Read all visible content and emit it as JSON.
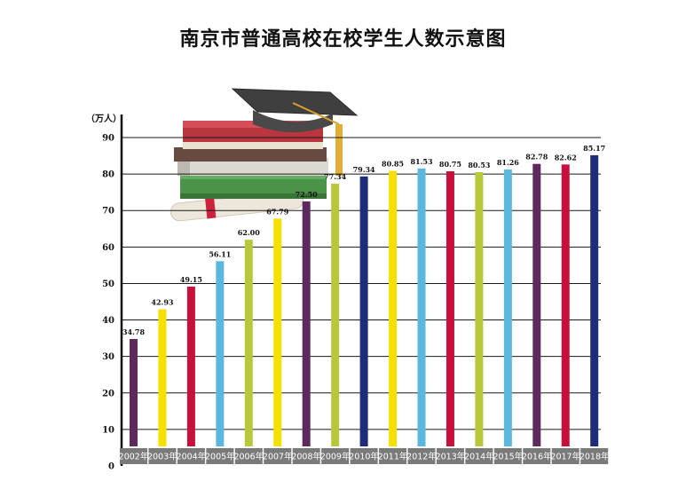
{
  "page": {
    "title": "南京市普通高校在校学生人数示意图"
  },
  "chart_data": {
    "type": "bar",
    "title": "南京市普通高校在校学生人数示意图",
    "ylabel": "（万人）",
    "xlabel": "",
    "ylim": [
      0,
      90
    ],
    "yticks": [
      0,
      10,
      20,
      30,
      40,
      50,
      60,
      70,
      80,
      90
    ],
    "grid": true,
    "categories": [
      "2002年",
      "2003年",
      "2004年",
      "2005年",
      "2006年",
      "2007年",
      "2008年",
      "2009年",
      "2010年",
      "2011年",
      "2012年",
      "2013年",
      "2014年",
      "2015年",
      "2016年",
      "2017年",
      "2018年"
    ],
    "values": [
      34.78,
      42.93,
      49.15,
      56.11,
      62.0,
      67.79,
      72.5,
      77.34,
      79.34,
      80.85,
      81.53,
      80.75,
      80.53,
      81.26,
      82.78,
      82.62,
      85.17
    ],
    "value_labels": [
      "34.78",
      "42.93",
      "49.15",
      "56.11",
      "62.00",
      "67.79",
      "72.50",
      "77.34",
      "79.34",
      "80.85",
      "81.53",
      "80.75",
      "80.53",
      "81.26",
      "82.78",
      "82.62",
      "85.17"
    ],
    "bar_colors": [
      "#5e2a5e",
      "#f5e000",
      "#c8103c",
      "#5bb7dd",
      "#b7c93a",
      "#f5e000",
      "#5e2a5e",
      "#b7c93a",
      "#1f2c7a",
      "#f5e000",
      "#5bb7dd",
      "#c8103c",
      "#b7c93a",
      "#5bb7dd",
      "#5e2a5e",
      "#c8103c",
      "#1f2c7a"
    ],
    "decoration": "graduation-cap-and-books"
  }
}
